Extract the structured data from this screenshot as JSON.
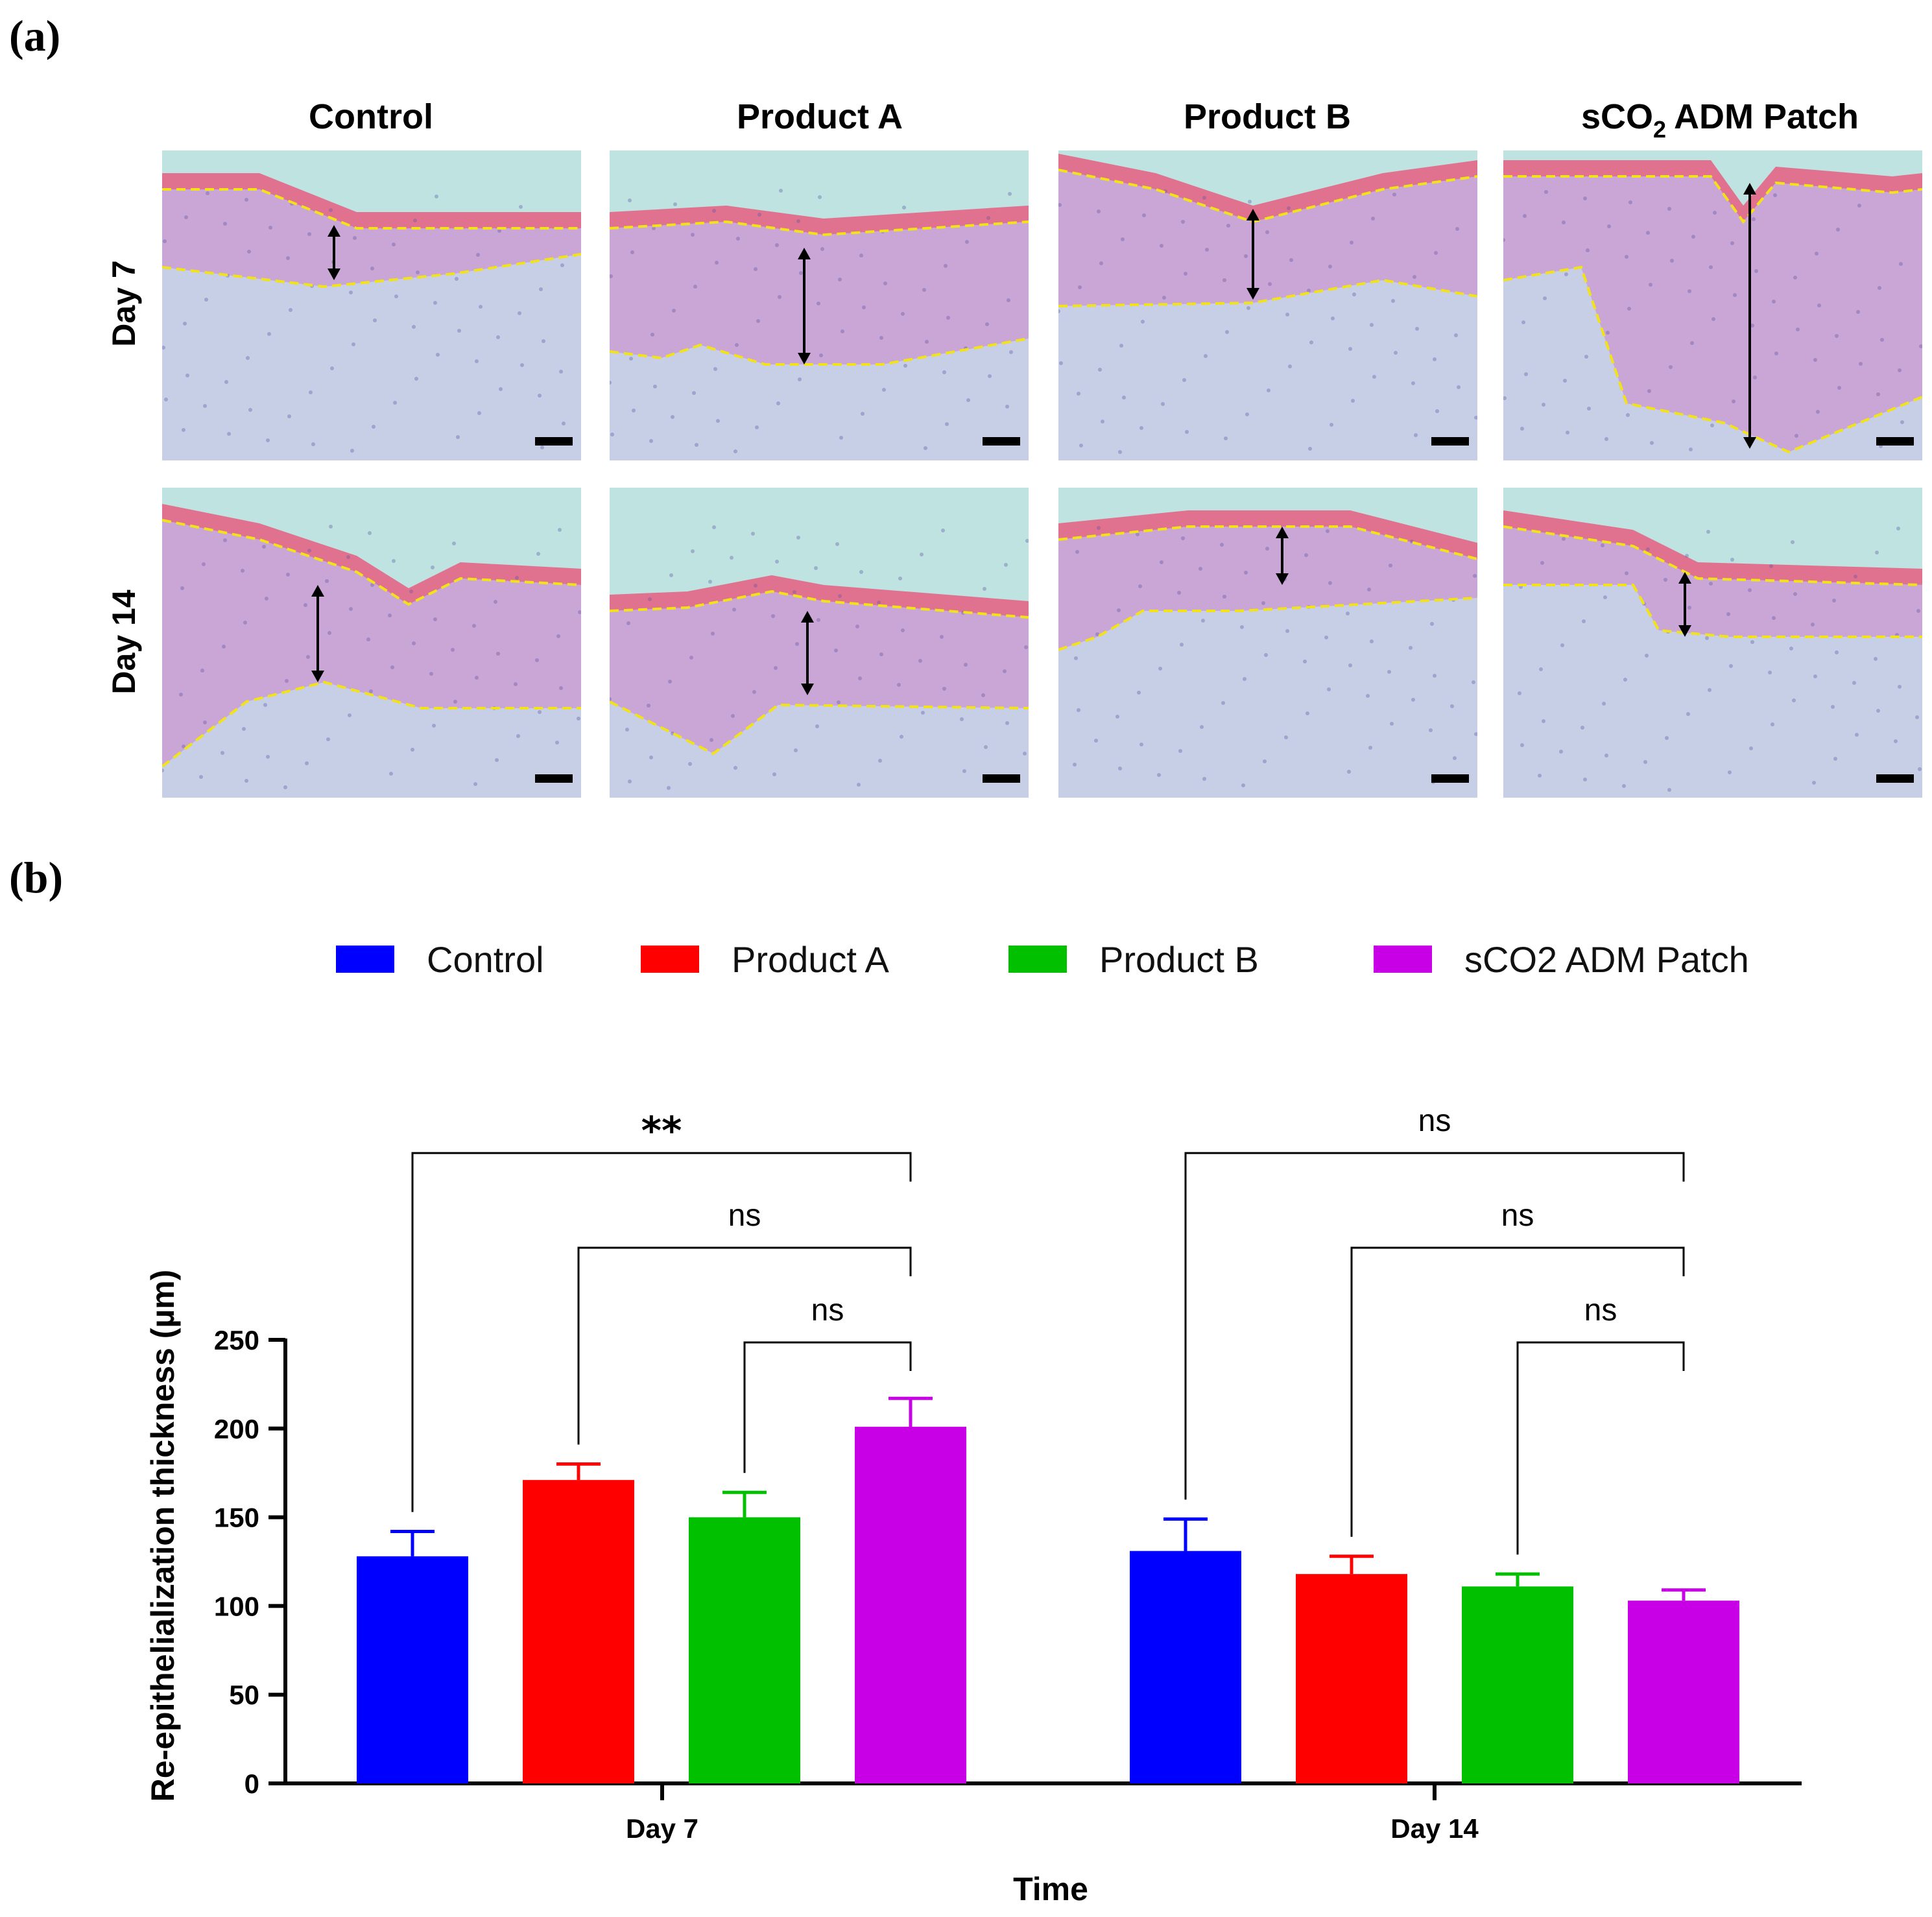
{
  "panel_a": {
    "label": "(a)",
    "columns": [
      "Control",
      "Product A",
      "Product B",
      "sCO",
      "ADM Patch"
    ],
    "co2_subscript": "2",
    "rows": [
      "Day 7",
      "Day 14"
    ]
  },
  "panel_b": {
    "label": "(b)"
  },
  "colors": {
    "Control": "#0000ff",
    "Product A": "#ff0000",
    "Product B": "#00c000",
    "sCO2 ADM Patch": "#c800e6",
    "tissue": "#c9a6d6",
    "dermis": "#c6cfe6",
    "background": "#bfe3e1",
    "boundary": "#f2e21a"
  },
  "chart_data": {
    "type": "bar",
    "title": "",
    "xlabel": "Time",
    "ylabel": "Re-epithelialization thickness (µm)",
    "categories": [
      "Day 7",
      "Day 14"
    ],
    "ylim": [
      0,
      250
    ],
    "yticks": [
      0,
      50,
      100,
      150,
      200,
      250
    ],
    "ytick_labels": [
      "0",
      "50",
      "100",
      "150",
      "200",
      "250"
    ],
    "legend_position": "top",
    "series": [
      {
        "name": "Control",
        "values": [
          128,
          131
        ],
        "errors": [
          14,
          18
        ]
      },
      {
        "name": "Product A",
        "values": [
          171,
          118
        ],
        "errors": [
          9,
          10
        ]
      },
      {
        "name": "Product B",
        "values": [
          150,
          111
        ],
        "errors": [
          14,
          7
        ]
      },
      {
        "name": "sCO2 ADM Patch",
        "values": [
          201,
          103
        ],
        "errors": [
          16,
          6
        ]
      }
    ],
    "significance": [
      {
        "category": "Day 7",
        "from_series": 0,
        "to_series": 3,
        "label": "**",
        "level": 0
      },
      {
        "category": "Day 7",
        "from_series": 1,
        "to_series": 3,
        "label": "ns",
        "level": 1
      },
      {
        "category": "Day 7",
        "from_series": 2,
        "to_series": 3,
        "label": "ns",
        "level": 2
      },
      {
        "category": "Day 14",
        "from_series": 0,
        "to_series": 3,
        "label": "ns",
        "level": 0
      },
      {
        "category": "Day 14",
        "from_series": 1,
        "to_series": 3,
        "label": "ns",
        "level": 1
      },
      {
        "category": "Day 14",
        "from_series": 2,
        "to_series": 3,
        "label": "ns",
        "level": 2
      }
    ]
  }
}
